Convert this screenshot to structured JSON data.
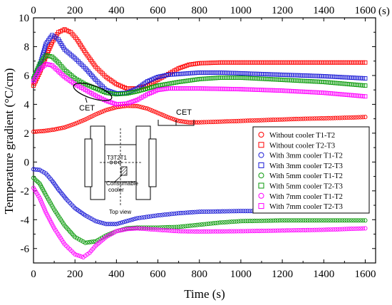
{
  "chart_data": {
    "type": "scatter",
    "title": "",
    "xlabel": "Time (s)",
    "ylabel": "Temperature gradient (°C/cm)",
    "x_unit_label": "(s)",
    "xlim": [
      0,
      1650
    ],
    "ylim": [
      -7,
      10
    ],
    "x_ticks": [
      "0",
      "200",
      "400",
      "600",
      "800",
      "1000",
      "1200",
      "1400",
      "1600"
    ],
    "y_ticks": [
      "-6",
      "-4",
      "-2",
      "0",
      "2",
      "4",
      "6",
      "8",
      "10"
    ],
    "top_x_ticks": [
      "0",
      "200",
      "400",
      "600",
      "800",
      "1000",
      "1200",
      "1400",
      "1600"
    ],
    "legend_position": "right",
    "colors": {
      "red": "#ff0000",
      "blue": "#1a1ad6",
      "green": "#0a9a0a",
      "magenta": "#ff00ff"
    },
    "series": [
      {
        "name": "Without cooler T1-T2",
        "marker": "circle",
        "color": "#ff0000",
        "points": [
          [
            0,
            2.1
          ],
          [
            50,
            2.15
          ],
          [
            100,
            2.25
          ],
          [
            150,
            2.4
          ],
          [
            200,
            2.65
          ],
          [
            250,
            2.95
          ],
          [
            300,
            3.3
          ],
          [
            350,
            3.6
          ],
          [
            400,
            3.8
          ],
          [
            450,
            3.9
          ],
          [
            500,
            3.88
          ],
          [
            550,
            3.7
          ],
          [
            600,
            3.4
          ],
          [
            650,
            3.1
          ],
          [
            700,
            2.85
          ],
          [
            750,
            2.75
          ],
          [
            800,
            2.75
          ],
          [
            900,
            2.8
          ],
          [
            1000,
            2.85
          ],
          [
            1100,
            2.9
          ],
          [
            1200,
            2.95
          ],
          [
            1300,
            3.0
          ],
          [
            1400,
            3.03
          ],
          [
            1500,
            3.07
          ],
          [
            1600,
            3.12
          ]
        ]
      },
      {
        "name": "Without cooler T2-T3",
        "marker": "square",
        "color": "#ff0000",
        "points": [
          [
            0,
            5.3
          ],
          [
            30,
            6.2
          ],
          [
            60,
            7.3
          ],
          [
            90,
            8.3
          ],
          [
            120,
            9.0
          ],
          [
            150,
            9.2
          ],
          [
            180,
            9.0
          ],
          [
            210,
            8.5
          ],
          [
            250,
            7.6
          ],
          [
            300,
            6.6
          ],
          [
            350,
            5.9
          ],
          [
            400,
            5.4
          ],
          [
            450,
            5.1
          ],
          [
            500,
            5.1
          ],
          [
            550,
            5.3
          ],
          [
            600,
            5.7
          ],
          [
            650,
            6.1
          ],
          [
            700,
            6.5
          ],
          [
            750,
            6.75
          ],
          [
            800,
            6.85
          ],
          [
            900,
            6.9
          ],
          [
            1000,
            6.9
          ],
          [
            1200,
            6.9
          ],
          [
            1400,
            6.9
          ],
          [
            1600,
            6.9
          ]
        ]
      },
      {
        "name": "With 3mm cooler T1-T2",
        "marker": "circle",
        "color": "#1a1ad6",
        "points": [
          [
            0,
            -0.5
          ],
          [
            30,
            -0.55
          ],
          [
            60,
            -0.8
          ],
          [
            90,
            -1.3
          ],
          [
            120,
            -1.9
          ],
          [
            160,
            -2.6
          ],
          [
            200,
            -3.2
          ],
          [
            250,
            -3.7
          ],
          [
            300,
            -4.1
          ],
          [
            350,
            -4.3
          ],
          [
            400,
            -4.3
          ],
          [
            450,
            -4.1
          ],
          [
            500,
            -3.9
          ],
          [
            600,
            -3.7
          ],
          [
            700,
            -3.55
          ],
          [
            800,
            -3.45
          ],
          [
            1000,
            -3.4
          ],
          [
            1200,
            -3.4
          ],
          [
            1400,
            -3.4
          ],
          [
            1600,
            -3.4
          ]
        ]
      },
      {
        "name": "With 3mm cooler T2-T3",
        "marker": "square",
        "color": "#1a1ad6",
        "points": [
          [
            0,
            5.7
          ],
          [
            30,
            6.7
          ],
          [
            60,
            8.2
          ],
          [
            90,
            8.8
          ],
          [
            120,
            8.5
          ],
          [
            150,
            7.8
          ],
          [
            200,
            7.2
          ],
          [
            250,
            6.5
          ],
          [
            300,
            5.7
          ],
          [
            350,
            5.0
          ],
          [
            400,
            4.75
          ],
          [
            450,
            4.8
          ],
          [
            500,
            5.1
          ],
          [
            550,
            5.6
          ],
          [
            600,
            5.9
          ],
          [
            650,
            6.05
          ],
          [
            700,
            6.1
          ],
          [
            800,
            6.2
          ],
          [
            900,
            6.2
          ],
          [
            1000,
            6.15
          ],
          [
            1200,
            6.05
          ],
          [
            1400,
            5.95
          ],
          [
            1600,
            5.8
          ]
        ]
      },
      {
        "name": "With 5mm cooler  T1-T2",
        "marker": "circle",
        "color": "#0a9a0a",
        "points": [
          [
            0,
            -1.1
          ],
          [
            30,
            -1.5
          ],
          [
            60,
            -2.3
          ],
          [
            100,
            -3.3
          ],
          [
            150,
            -4.4
          ],
          [
            200,
            -5.2
          ],
          [
            250,
            -5.6
          ],
          [
            300,
            -5.5
          ],
          [
            350,
            -5.1
          ],
          [
            400,
            -4.8
          ],
          [
            450,
            -4.6
          ],
          [
            500,
            -4.55
          ],
          [
            600,
            -4.55
          ],
          [
            700,
            -4.5
          ],
          [
            800,
            -4.35
          ],
          [
            900,
            -4.2
          ],
          [
            1000,
            -4.1
          ],
          [
            1200,
            -4.05
          ],
          [
            1400,
            -4.05
          ],
          [
            1600,
            -4.05
          ]
        ]
      },
      {
        "name": "With 5mm cooler  T2-T3",
        "marker": "square",
        "color": "#0a9a0a",
        "points": [
          [
            0,
            5.8
          ],
          [
            30,
            6.8
          ],
          [
            60,
            7.4
          ],
          [
            90,
            7.3
          ],
          [
            120,
            6.9
          ],
          [
            150,
            6.4
          ],
          [
            200,
            5.8
          ],
          [
            250,
            5.4
          ],
          [
            300,
            5.1
          ],
          [
            350,
            4.8
          ],
          [
            400,
            4.7
          ],
          [
            450,
            4.75
          ],
          [
            500,
            4.9
          ],
          [
            550,
            5.1
          ],
          [
            600,
            5.3
          ],
          [
            700,
            5.55
          ],
          [
            800,
            5.75
          ],
          [
            900,
            5.85
          ],
          [
            1000,
            5.85
          ],
          [
            1200,
            5.7
          ],
          [
            1400,
            5.55
          ],
          [
            1600,
            5.3
          ]
        ]
      },
      {
        "name": "With 7mm cooler  T1-T2",
        "marker": "circle",
        "color": "#ff00ff",
        "points": [
          [
            0,
            -1.8
          ],
          [
            30,
            -2.5
          ],
          [
            60,
            -3.5
          ],
          [
            100,
            -4.6
          ],
          [
            150,
            -5.7
          ],
          [
            200,
            -6.4
          ],
          [
            240,
            -6.6
          ],
          [
            270,
            -6.3
          ],
          [
            300,
            -5.8
          ],
          [
            350,
            -5.2
          ],
          [
            400,
            -4.8
          ],
          [
            450,
            -4.65
          ],
          [
            500,
            -4.6
          ],
          [
            600,
            -4.7
          ],
          [
            700,
            -4.8
          ],
          [
            800,
            -4.82
          ],
          [
            1000,
            -4.8
          ],
          [
            1200,
            -4.75
          ],
          [
            1400,
            -4.7
          ],
          [
            1600,
            -4.6
          ]
        ]
      },
      {
        "name": "With 7mm cooler  T2-T3",
        "marker": "square",
        "color": "#ff00ff",
        "points": [
          [
            0,
            5.6
          ],
          [
            30,
            6.4
          ],
          [
            60,
            6.8
          ],
          [
            90,
            6.7
          ],
          [
            120,
            6.3
          ],
          [
            150,
            5.9
          ],
          [
            200,
            5.4
          ],
          [
            250,
            5.0
          ],
          [
            300,
            4.6
          ],
          [
            350,
            4.25
          ],
          [
            400,
            4.0
          ],
          [
            450,
            4.05
          ],
          [
            500,
            4.3
          ],
          [
            550,
            4.7
          ],
          [
            600,
            5.0
          ],
          [
            650,
            5.1
          ],
          [
            700,
            5.1
          ],
          [
            800,
            5.1
          ],
          [
            1000,
            5.05
          ],
          [
            1200,
            4.95
          ],
          [
            1400,
            4.8
          ],
          [
            1600,
            4.55
          ]
        ]
      }
    ],
    "annotations": [
      {
        "text": "CET"
      },
      {
        "text": "CET"
      }
    ]
  },
  "inset": {
    "labels": [
      "T3T2T1",
      "Consumable",
      "cooler",
      "Top view"
    ]
  }
}
